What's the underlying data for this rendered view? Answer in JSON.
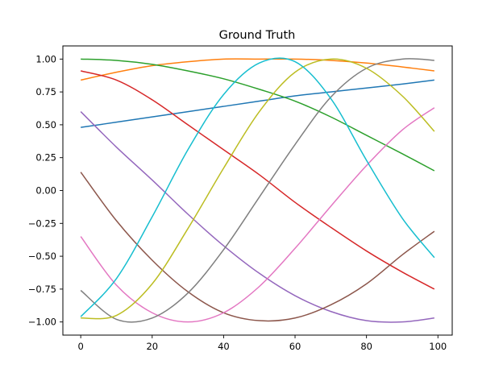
{
  "chart_data": {
    "type": "line",
    "title": "Ground Truth",
    "xlabel": "",
    "ylabel": "",
    "xlim": [
      -5,
      104
    ],
    "ylim": [
      -1.1,
      1.1
    ],
    "x_ticks": [
      0,
      20,
      40,
      60,
      80,
      100
    ],
    "x_tick_labels": [
      "0",
      "20",
      "40",
      "60",
      "80",
      "100"
    ],
    "y_ticks": [
      1.0,
      0.75,
      0.5,
      0.25,
      0.0,
      -0.25,
      -0.5,
      -0.75,
      -1.0
    ],
    "y_tick_labels": [
      "1.00",
      "0.75",
      "0.50",
      "0.25",
      "0.00",
      "−0.25",
      "−0.50",
      "−0.75",
      "−1.00"
    ],
    "grid": false,
    "legend": "none",
    "x": [
      0,
      10,
      20,
      30,
      40,
      50,
      60,
      70,
      80,
      90,
      99
    ],
    "series": [
      {
        "color": "#1f77b4",
        "values": [
          0.48,
          0.52,
          0.56,
          0.6,
          0.64,
          0.68,
          0.72,
          0.75,
          0.78,
          0.81,
          0.84
        ]
      },
      {
        "color": "#ff7f0e",
        "values": [
          0.84,
          0.9,
          0.95,
          0.98,
          1.0,
          1.0,
          1.0,
          0.99,
          0.97,
          0.94,
          0.91
        ]
      },
      {
        "color": "#2ca02c",
        "values": [
          1.0,
          0.99,
          0.96,
          0.91,
          0.85,
          0.77,
          0.68,
          0.56,
          0.42,
          0.28,
          0.15
        ]
      },
      {
        "color": "#d62728",
        "values": [
          0.91,
          0.84,
          0.69,
          0.5,
          0.31,
          0.12,
          -0.09,
          -0.28,
          -0.46,
          -0.62,
          -0.75
        ]
      },
      {
        "color": "#9467bd",
        "values": [
          0.6,
          0.33,
          0.08,
          -0.18,
          -0.42,
          -0.63,
          -0.8,
          -0.92,
          -0.99,
          -1.0,
          -0.97
        ]
      },
      {
        "color": "#8c564b",
        "values": [
          0.14,
          -0.23,
          -0.53,
          -0.77,
          -0.93,
          -0.99,
          -0.97,
          -0.87,
          -0.71,
          -0.49,
          -0.31
        ]
      },
      {
        "color": "#e377c2",
        "values": [
          -0.35,
          -0.72,
          -0.93,
          -1.0,
          -0.93,
          -0.73,
          -0.44,
          -0.12,
          0.19,
          0.46,
          0.63
        ]
      },
      {
        "color": "#7f7f7f",
        "values": [
          -0.76,
          -0.98,
          -0.97,
          -0.78,
          -0.45,
          -0.05,
          0.35,
          0.71,
          0.93,
          1.0,
          0.99
        ]
      },
      {
        "color": "#bcbd22",
        "values": [
          -0.97,
          -0.95,
          -0.71,
          -0.29,
          0.17,
          0.6,
          0.9,
          1.0,
          0.93,
          0.72,
          0.45
        ]
      },
      {
        "color": "#17becf",
        "values": [
          -0.96,
          -0.67,
          -0.2,
          0.31,
          0.73,
          0.97,
          0.98,
          0.7,
          0.23,
          -0.21,
          -0.51
        ]
      }
    ]
  }
}
